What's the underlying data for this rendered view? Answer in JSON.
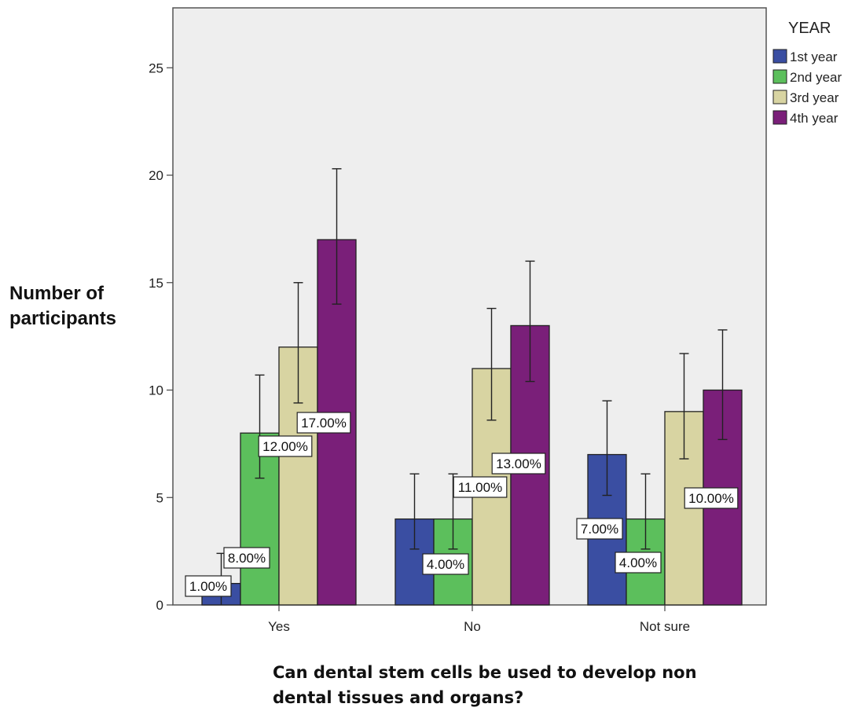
{
  "chart_data": {
    "type": "bar",
    "title": "",
    "xlabel": "Can dental stem cells be used to develop non dental tissues and organs?",
    "ylabel": "Number of participants",
    "ylim": [
      0,
      28
    ],
    "yticks": [
      0,
      5,
      10,
      15,
      20,
      25
    ],
    "categories": [
      "Yes",
      "No",
      "Not sure"
    ],
    "legend": {
      "title": "YEAR",
      "placement": "right, outside plot"
    },
    "grid": false,
    "series": [
      {
        "name": "1st year",
        "color": "#3a4ea2",
        "values": [
          1,
          4,
          7
        ],
        "error_high": [
          2.4,
          6.1,
          9.5
        ],
        "error_low": [
          0,
          2.6,
          5.1
        ],
        "data_labels": [
          "1.00%",
          "",
          "7.00%"
        ]
      },
      {
        "name": "2nd year",
        "color": "#5cbf5c",
        "values": [
          8,
          4,
          4
        ],
        "error_high": [
          10.7,
          6.1,
          6.1
        ],
        "error_low": [
          5.9,
          2.6,
          2.6
        ],
        "data_labels": [
          "8.00%",
          "4.00%",
          "4.00%"
        ]
      },
      {
        "name": "3rd year",
        "color": "#d8d4a2",
        "values": [
          12,
          11,
          9
        ],
        "error_high": [
          15.0,
          13.8,
          11.7
        ],
        "error_low": [
          9.4,
          8.6,
          6.8
        ],
        "data_labels": [
          "12.00%",
          "11.00%",
          ""
        ]
      },
      {
        "name": "4th year",
        "color": "#7a1f79",
        "values": [
          17,
          13,
          10
        ],
        "error_high": [
          20.3,
          16.0,
          12.8
        ],
        "error_low": [
          14.0,
          10.4,
          7.7
        ],
        "data_labels": [
          "17.00%",
          "13.00%",
          "10.00%"
        ]
      }
    ],
    "plot_background": "#eeeeee"
  }
}
